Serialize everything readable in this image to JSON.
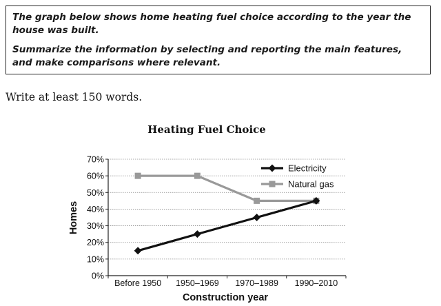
{
  "task": {
    "line1": "The graph below shows home heating fuel choice according to the year the house was built.",
    "line2": "Summarize the information by selecting and reporting the main features, and make comparisons where relevant."
  },
  "instruction": "Write at least 150 words.",
  "chart_data": {
    "type": "line",
    "title": "Heating Fuel Choice",
    "xlabel": "Construction year",
    "ylabel": "Homes",
    "categories": [
      "Before 1950",
      "1950–1969",
      "1970–1989",
      "1990–2010"
    ],
    "y_ticks": [
      "0%",
      "10%",
      "20%",
      "30%",
      "40%",
      "50%",
      "60%",
      "70%"
    ],
    "ylim": [
      0,
      70
    ],
    "grid": true,
    "legend_position": "top-right",
    "series": [
      {
        "name": "Electricity",
        "values": [
          15,
          25,
          35,
          45
        ],
        "color": "#111111",
        "marker": "diamond"
      },
      {
        "name": "Natural gas",
        "values": [
          60,
          60,
          45,
          45
        ],
        "color": "#999999",
        "marker": "square"
      }
    ]
  }
}
